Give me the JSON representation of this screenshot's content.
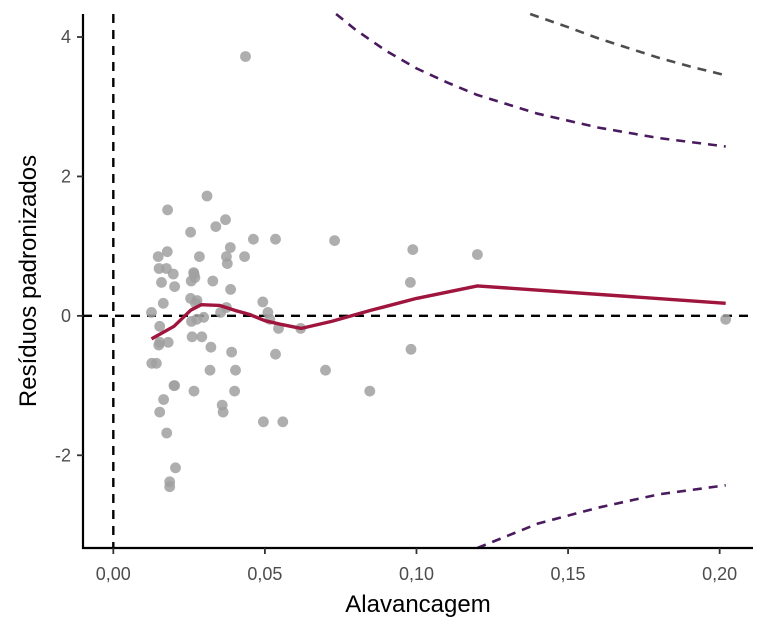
{
  "chart_data": {
    "type": "scatter",
    "xlabel": "Alavancagem",
    "ylabel": "Resíduos padronizados",
    "xlim": [
      -0.01,
      0.211
    ],
    "ylim": [
      -3.33,
      4.33
    ],
    "x_ticks": [
      0.0,
      0.05,
      0.1,
      0.15,
      0.2
    ],
    "x_tick_labels": [
      "0,00",
      "0,05",
      "0,10",
      "0,15",
      "0,20"
    ],
    "y_ticks": [
      -2,
      0,
      2,
      4
    ],
    "y_tick_labels": [
      "-2",
      "0",
      "2",
      "4"
    ],
    "grid": false,
    "colors": {
      "points": "#a0a0a0",
      "smooth_line": "#a0153e",
      "cook_inner": "#4a1a5e",
      "cook_outer": "#4d4d4d",
      "reference_lines": "#000000",
      "axis": "#000000"
    },
    "reference_lines": {
      "x": 0,
      "y": 0
    },
    "points": [
      {
        "x": 0.0126,
        "y": 0.05
      },
      {
        "x": 0.0148,
        "y": 0.85
      },
      {
        "x": 0.0151,
        "y": 0.68
      },
      {
        "x": 0.0159,
        "y": 0.48
      },
      {
        "x": 0.0175,
        "y": 0.68
      },
      {
        "x": 0.0179,
        "y": 1.52
      },
      {
        "x": 0.0198,
        "y": 0.6
      },
      {
        "x": 0.0165,
        "y": 0.18
      },
      {
        "x": 0.0178,
        "y": 0.92
      },
      {
        "x": 0.0202,
        "y": 0.42
      },
      {
        "x": 0.0153,
        "y": -0.15
      },
      {
        "x": 0.015,
        "y": -0.42
      },
      {
        "x": 0.0153,
        "y": -0.38
      },
      {
        "x": 0.0181,
        "y": -0.38
      },
      {
        "x": 0.0127,
        "y": -0.68
      },
      {
        "x": 0.0142,
        "y": -0.68
      },
      {
        "x": 0.02,
        "y": -1.0
      },
      {
        "x": 0.0202,
        "y": -1.0
      },
      {
        "x": 0.0166,
        "y": -1.2
      },
      {
        "x": 0.0153,
        "y": -1.38
      },
      {
        "x": 0.0176,
        "y": -1.68
      },
      {
        "x": 0.0205,
        "y": -2.18
      },
      {
        "x": 0.0186,
        "y": -2.38
      },
      {
        "x": 0.0186,
        "y": -2.45
      },
      {
        "x": 0.0255,
        "y": 1.2
      },
      {
        "x": 0.0257,
        "y": 0.5
      },
      {
        "x": 0.0265,
        "y": 0.62
      },
      {
        "x": 0.0266,
        "y": 0.6
      },
      {
        "x": 0.0269,
        "y": 0.55
      },
      {
        "x": 0.0255,
        "y": 0.25
      },
      {
        "x": 0.0276,
        "y": 0.22
      },
      {
        "x": 0.0271,
        "y": 0.18
      },
      {
        "x": 0.0284,
        "y": 0.85
      },
      {
        "x": 0.0309,
        "y": 1.72
      },
      {
        "x": 0.0338,
        "y": 1.28
      },
      {
        "x": 0.0328,
        "y": 0.5
      },
      {
        "x": 0.0258,
        "y": -0.08
      },
      {
        "x": 0.0275,
        "y": -0.05
      },
      {
        "x": 0.0298,
        "y": -0.02
      },
      {
        "x": 0.026,
        "y": -0.3
      },
      {
        "x": 0.0292,
        "y": -0.3
      },
      {
        "x": 0.0322,
        "y": -0.45
      },
      {
        "x": 0.0266,
        "y": -1.08
      },
      {
        "x": 0.0319,
        "y": -0.78
      },
      {
        "x": 0.037,
        "y": 1.38
      },
      {
        "x": 0.0386,
        "y": 0.98
      },
      {
        "x": 0.0373,
        "y": 0.85
      },
      {
        "x": 0.0376,
        "y": 0.75
      },
      {
        "x": 0.0433,
        "y": 0.85
      },
      {
        "x": 0.0462,
        "y": 1.1
      },
      {
        "x": 0.0387,
        "y": 0.38
      },
      {
        "x": 0.0373,
        "y": 0.12
      },
      {
        "x": 0.0354,
        "y": 0.05
      },
      {
        "x": 0.039,
        "y": -0.52
      },
      {
        "x": 0.0403,
        "y": -0.78
      },
      {
        "x": 0.0359,
        "y": -1.28
      },
      {
        "x": 0.0362,
        "y": -1.38
      },
      {
        "x": 0.04,
        "y": -1.08
      },
      {
        "x": 0.0436,
        "y": 3.72
      },
      {
        "x": 0.0535,
        "y": 1.1
      },
      {
        "x": 0.0493,
        "y": 0.2
      },
      {
        "x": 0.051,
        "y": 0.05
      },
      {
        "x": 0.0516,
        "y": -0.05
      },
      {
        "x": 0.0545,
        "y": -0.18
      },
      {
        "x": 0.0535,
        "y": -0.55
      },
      {
        "x": 0.0495,
        "y": -1.52
      },
      {
        "x": 0.0559,
        "y": -1.52
      },
      {
        "x": 0.0618,
        "y": -0.18
      },
      {
        "x": 0.073,
        "y": 1.08
      },
      {
        "x": 0.07,
        "y": -0.78
      },
      {
        "x": 0.0846,
        "y": -1.08
      },
      {
        "x": 0.0988,
        "y": 0.95
      },
      {
        "x": 0.098,
        "y": 0.48
      },
      {
        "x": 0.0982,
        "y": -0.48
      },
      {
        "x": 0.1201,
        "y": 0.88
      },
      {
        "x": 0.202,
        "y": -0.05
      }
    ],
    "smooth_line": {
      "x": [
        0.0126,
        0.02,
        0.0255,
        0.029,
        0.035,
        0.04,
        0.045,
        0.05,
        0.055,
        0.062,
        0.072,
        0.085,
        0.1,
        0.1201,
        0.202
      ],
      "y": [
        -0.33,
        -0.15,
        0.08,
        0.16,
        0.15,
        0.08,
        0.02,
        -0.07,
        -0.12,
        -0.18,
        -0.08,
        0.08,
        0.25,
        0.43,
        0.18
      ]
    },
    "cook_inner_upper": {
      "x": [
        0.0735,
        0.08,
        0.09,
        0.1,
        0.11,
        0.12,
        0.14,
        0.16,
        0.18,
        0.202
      ],
      "y": [
        4.33,
        4.1,
        3.8,
        3.55,
        3.35,
        3.17,
        2.9,
        2.7,
        2.55,
        2.43
      ]
    },
    "cook_inner_lower": {
      "x": [
        0.1201,
        0.14,
        0.16,
        0.18,
        0.202
      ],
      "y": [
        -3.33,
        -2.98,
        -2.75,
        -2.56,
        -2.43
      ]
    },
    "cook_outer_upper": {
      "x": [
        0.1375,
        0.15,
        0.16,
        0.17,
        0.18,
        0.19,
        0.202
      ],
      "y": [
        4.33,
        4.14,
        3.98,
        3.84,
        3.7,
        3.58,
        3.45
      ]
    }
  }
}
